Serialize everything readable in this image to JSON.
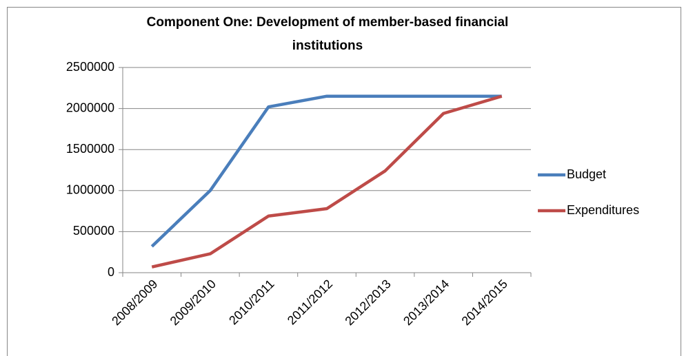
{
  "chart_data": {
    "type": "line",
    "title_lines": [
      "Component One: Development of member-based financial",
      "institutions"
    ],
    "categories": [
      "2008/2009",
      "2009/2010",
      "2010/2011",
      "2011/2012",
      "2012/2013",
      "2013/2014",
      "2014/2015"
    ],
    "series": [
      {
        "name": "Budget",
        "color": "#4a7ebb",
        "values": [
          320000,
          1000000,
          2020000,
          2150000,
          2150000,
          2150000,
          2150000
        ]
      },
      {
        "name": "Expenditures",
        "color": "#be4b48",
        "values": [
          70000,
          230000,
          690000,
          780000,
          1240000,
          1940000,
          2150000
        ]
      }
    ],
    "ylim": [
      0,
      2500000
    ],
    "yticks": [
      0,
      500000,
      1000000,
      1500000,
      2000000,
      2500000
    ],
    "grid": true,
    "legend": "right"
  }
}
